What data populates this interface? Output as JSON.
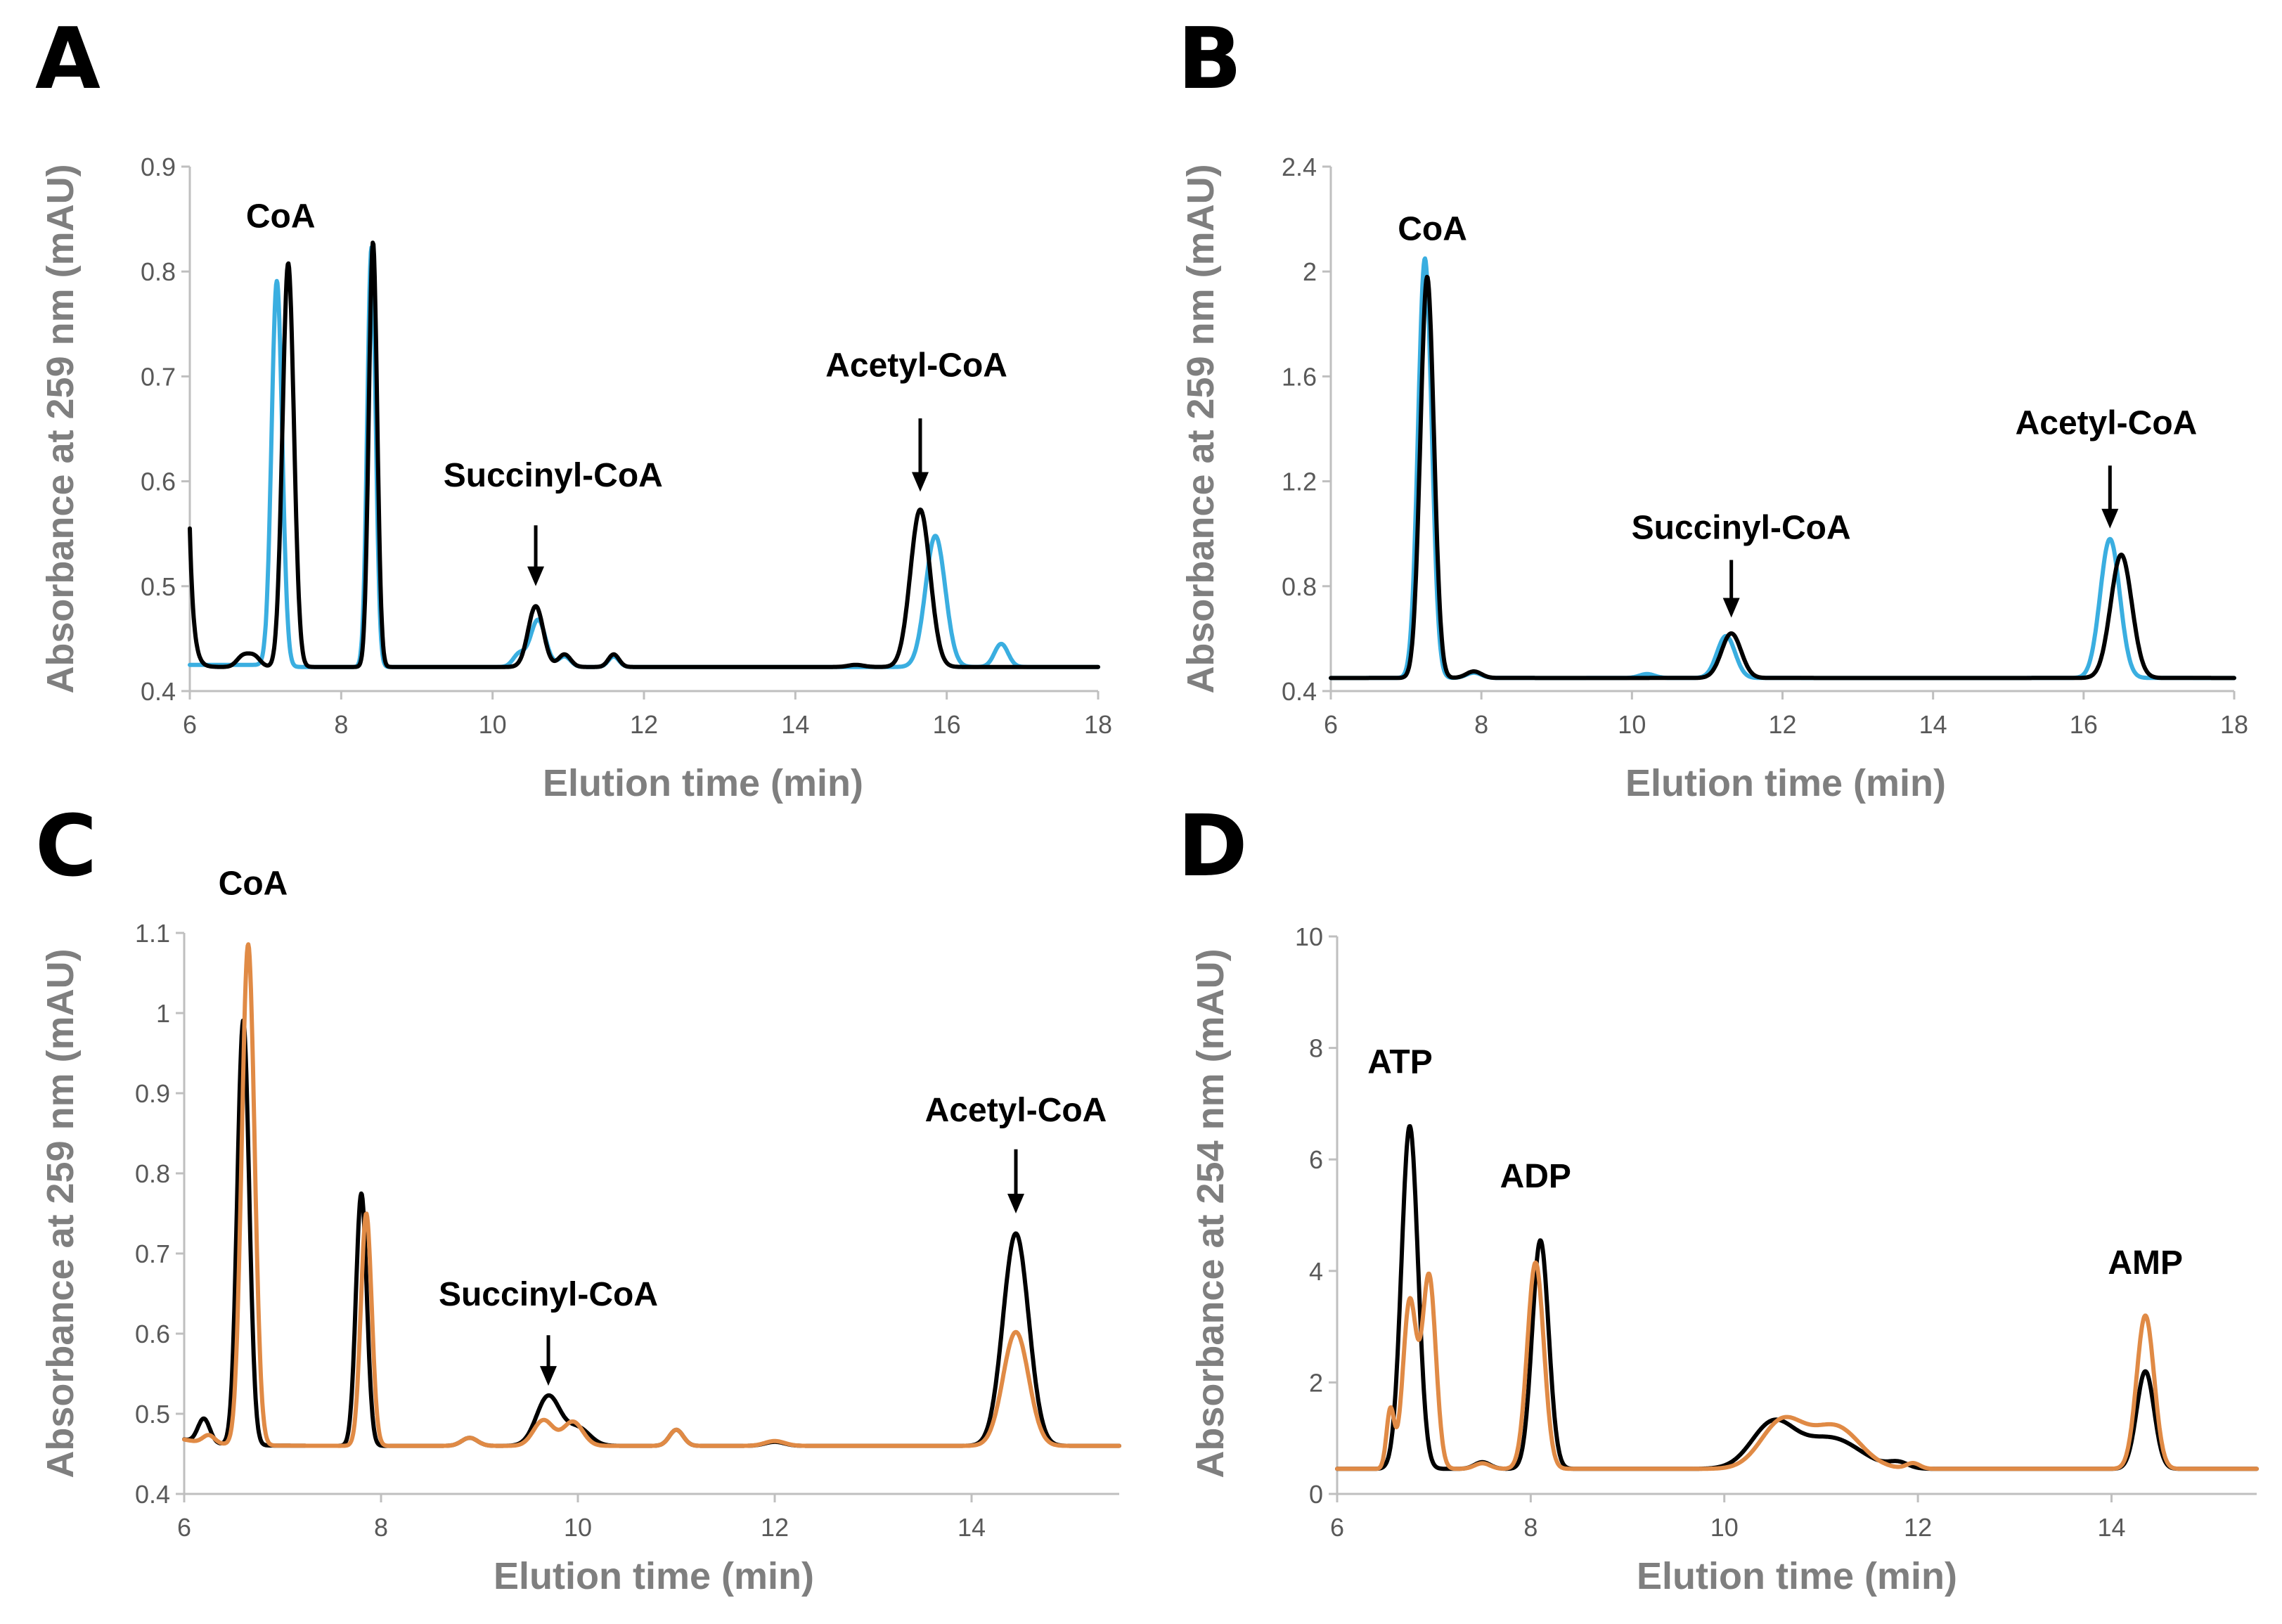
{
  "colors": {
    "black": "#000000",
    "blue": "#3aaee0",
    "orange": "#e08a45"
  },
  "chart_data": [
    {
      "id": "A",
      "panel_label": "A",
      "type": "line",
      "xlabel": "Elution time (min)",
      "ylabel": "Absorbance at 259 nm (mAU)",
      "xlim": [
        6,
        18
      ],
      "ylim": [
        0.4,
        0.9
      ],
      "xticks": [
        6,
        8,
        10,
        12,
        14,
        16,
        18
      ],
      "yticks": [
        0.4,
        0.5,
        0.6,
        0.7,
        0.8,
        0.9
      ],
      "xtick_labels": [
        "6",
        "8",
        "10",
        "12",
        "14",
        "16",
        "18"
      ],
      "ytick_labels": [
        "0.4",
        "0.5",
        "0.6",
        "0.7",
        "0.8",
        "0.9"
      ],
      "baseline": 0.423,
      "series": [
        {
          "name": "blue",
          "color": "#3aaee0",
          "baseline_start": 0.425,
          "peaks": [
            [
              7.15,
              0.368,
              0.07
            ],
            [
              8.4,
              0.4,
              0.055
            ],
            [
              10.35,
              0.012,
              0.08
            ],
            [
              10.6,
              0.045,
              0.1
            ],
            [
              10.95,
              0.01,
              0.08
            ],
            [
              11.6,
              0.01,
              0.07
            ],
            [
              15.85,
              0.125,
              0.13
            ],
            [
              16.72,
              0.022,
              0.09
            ]
          ]
        },
        {
          "name": "black",
          "color": "#000000",
          "spike": [
            0.555,
            0.05
          ],
          "peaks": [
            [
              6.7,
              0.01,
              0.08
            ],
            [
              6.85,
              0.01,
              0.08
            ],
            [
              7.3,
              0.385,
              0.075
            ],
            [
              8.42,
              0.405,
              0.055
            ],
            [
              10.57,
              0.058,
              0.1
            ],
            [
              10.95,
              0.012,
              0.08
            ],
            [
              11.6,
              0.012,
              0.07
            ],
            [
              14.8,
              0.002,
              0.1
            ],
            [
              15.65,
              0.15,
              0.13
            ]
          ]
        }
      ],
      "annotations": [
        {
          "text": "CoA",
          "x": 7.2,
          "y": 0.842,
          "arrow": false
        },
        {
          "text": "Succinyl-CoA",
          "x": 10.8,
          "y": 0.595,
          "arrow": true,
          "arrow_from": 0.558,
          "arrow_to": 0.5,
          "arrow_x": 10.57
        },
        {
          "text": "Acetyl-CoA",
          "x": 15.6,
          "y": 0.7,
          "arrow": true,
          "arrow_from": 0.66,
          "arrow_to": 0.59,
          "arrow_x": 15.65
        }
      ]
    },
    {
      "id": "B",
      "panel_label": "B",
      "type": "line",
      "xlabel": "Elution time (min)",
      "ylabel": "Absorbance at 259 nm (mAU)",
      "xlim": [
        6,
        18
      ],
      "ylim": [
        0.4,
        2.4
      ],
      "xticks": [
        6,
        8,
        10,
        12,
        14,
        16,
        18
      ],
      "yticks": [
        0.4,
        0.8,
        1.2,
        1.6,
        2.0,
        2.4
      ],
      "xtick_labels": [
        "6",
        "8",
        "10",
        "12",
        "14",
        "16",
        "18"
      ],
      "ytick_labels": [
        "0.4",
        "0.8",
        "1.2",
        "1.6",
        "2",
        "2.4"
      ],
      "baseline": 0.45,
      "series": [
        {
          "name": "blue",
          "color": "#3aaee0",
          "peaks": [
            [
              7.25,
              1.6,
              0.09
            ],
            [
              7.9,
              0.02,
              0.1
            ],
            [
              10.2,
              0.015,
              0.1
            ],
            [
              11.25,
              0.16,
              0.12
            ],
            [
              16.35,
              0.53,
              0.13
            ]
          ]
        },
        {
          "name": "black",
          "color": "#000000",
          "peaks": [
            [
              7.28,
              1.53,
              0.09
            ],
            [
              7.9,
              0.025,
              0.1
            ],
            [
              11.32,
              0.17,
              0.13
            ],
            [
              16.5,
              0.47,
              0.14
            ]
          ]
        }
      ],
      "annotations": [
        {
          "text": "CoA",
          "x": 7.35,
          "y": 2.12,
          "arrow": false
        },
        {
          "text": "Succinyl-CoA",
          "x": 11.45,
          "y": 0.98,
          "arrow": true,
          "arrow_from": 0.9,
          "arrow_to": 0.68,
          "arrow_x": 11.32
        },
        {
          "text": "Acetyl-CoA",
          "x": 16.3,
          "y": 1.38,
          "arrow": true,
          "arrow_from": 1.26,
          "arrow_to": 1.02,
          "arrow_x": 16.35
        }
      ]
    },
    {
      "id": "C",
      "panel_label": "C",
      "type": "line",
      "xlabel": "Elution time (min)",
      "ylabel": "Absorbance at 259 nm (mAU)",
      "xlim": [
        6,
        15.5
      ],
      "ylim": [
        0.4,
        1.1
      ],
      "xticks": [
        6,
        8,
        10,
        12,
        14
      ],
      "yticks": [
        0.4,
        0.5,
        0.6,
        0.7,
        0.8,
        0.9,
        1.0,
        1.1
      ],
      "xtick_labels": [
        "6",
        "8",
        "10",
        "12",
        "14"
      ],
      "ytick_labels": [
        "0.4",
        "0.5",
        "0.6",
        "0.7",
        "0.8",
        "0.9",
        "1",
        "1.1"
      ],
      "baseline": 0.46,
      "series": [
        {
          "name": "black",
          "color": "#000000",
          "start": 0.468,
          "peaks": [
            [
              6.2,
              0.03,
              0.06
            ],
            [
              6.6,
              0.53,
              0.06
            ],
            [
              7.8,
              0.315,
              0.055
            ],
            [
              8.9,
              0.01,
              0.08
            ],
            [
              9.7,
              0.062,
              0.12
            ],
            [
              10.0,
              0.022,
              0.12
            ],
            [
              11.0,
              0.02,
              0.07
            ],
            [
              12.0,
              0.005,
              0.1
            ],
            [
              14.45,
              0.265,
              0.13
            ]
          ]
        },
        {
          "name": "orange",
          "color": "#e08a45",
          "start": 0.468,
          "peaks": [
            [
              6.25,
              0.01,
              0.06
            ],
            [
              6.65,
              0.625,
              0.065
            ],
            [
              7.85,
              0.29,
              0.055
            ],
            [
              8.9,
              0.01,
              0.08
            ],
            [
              9.65,
              0.032,
              0.1
            ],
            [
              9.95,
              0.03,
              0.1
            ],
            [
              11.0,
              0.02,
              0.07
            ],
            [
              12.0,
              0.006,
              0.1
            ],
            [
              14.45,
              0.142,
              0.13
            ]
          ]
        }
      ],
      "annotations": [
        {
          "text": "CoA",
          "x": 6.7,
          "y": 1.148,
          "arrow": false
        },
        {
          "text": "Succinyl-CoA",
          "x": 9.7,
          "y": 0.635,
          "arrow": true,
          "arrow_from": 0.598,
          "arrow_to": 0.535,
          "arrow_x": 9.7
        },
        {
          "text": "Acetyl-CoA",
          "x": 14.45,
          "y": 0.865,
          "arrow": true,
          "arrow_from": 0.83,
          "arrow_to": 0.75,
          "arrow_x": 14.45
        }
      ]
    },
    {
      "id": "D",
      "panel_label": "D",
      "type": "line",
      "xlabel": "Elution time (min)",
      "ylabel": "Absorbance at 254 nm (mAU)",
      "xlim": [
        6,
        15.5
      ],
      "ylim": [
        0,
        10
      ],
      "xticks": [
        6,
        8,
        10,
        12,
        14
      ],
      "yticks": [
        0,
        2,
        4,
        6,
        8,
        10
      ],
      "xtick_labels": [
        "6",
        "8",
        "10",
        "12",
        "14"
      ],
      "ytick_labels": [
        "0",
        "2",
        "4",
        "6",
        "8",
        "10"
      ],
      "baseline": 0.45,
      "series": [
        {
          "name": "black",
          "color": "#000000",
          "peaks": [
            [
              6.75,
              6.15,
              0.085
            ],
            [
              7.5,
              0.12,
              0.08
            ],
            [
              8.1,
              4.1,
              0.085
            ],
            [
              10.5,
              0.8,
              0.22
            ],
            [
              11.1,
              0.55,
              0.3
            ],
            [
              11.8,
              0.1,
              0.1
            ],
            [
              14.35,
              1.75,
              0.09
            ]
          ]
        },
        {
          "name": "orange",
          "color": "#e08a45",
          "peaks": [
            [
              6.55,
              1.05,
              0.04
            ],
            [
              6.75,
              3.0,
              0.07
            ],
            [
              6.95,
              3.45,
              0.07
            ],
            [
              7.5,
              0.1,
              0.08
            ],
            [
              8.05,
              3.7,
              0.085
            ],
            [
              10.6,
              0.85,
              0.22
            ],
            [
              11.15,
              0.75,
              0.25
            ],
            [
              11.95,
              0.1,
              0.07
            ],
            [
              14.35,
              2.75,
              0.09
            ]
          ]
        }
      ],
      "annotations": [
        {
          "text": "ATP",
          "x": 6.65,
          "y": 7.55,
          "arrow": false
        },
        {
          "text": "ADP",
          "x": 8.05,
          "y": 5.5,
          "arrow": false
        },
        {
          "text": "AMP",
          "x": 14.35,
          "y": 3.95,
          "arrow": false
        }
      ]
    }
  ]
}
